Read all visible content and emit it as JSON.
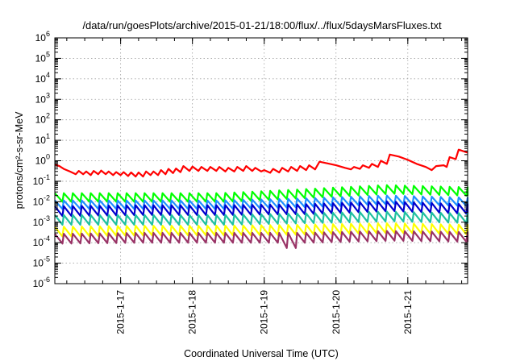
{
  "chart_data": {
    "type": "line",
    "title": "/data/run/goesPlots/archive/2015-01-21/18:00/flux/../flux/5daysMarsFluxes.txt",
    "xlabel": "Coordinated Universal Time (UTC)",
    "ylabel": "protons/cm²-s-sr-MeV",
    "yscale": "log",
    "xlim": [
      "2015-01-16T02:00",
      "2015-01-21T20:00"
    ],
    "ylim": [
      1e-06,
      1000000.0
    ],
    "grid": true,
    "x_ticks": [
      "2015-01-17T00:00",
      "2015-01-18T00:00",
      "2015-01-19T00:00",
      "2015-01-20T00:00",
      "2015-01-21T00:00"
    ],
    "x_tick_labels": [
      "2015-1-17",
      "2015-1-18",
      "2015-1-19",
      "2015-1-20",
      "2015-1-21"
    ],
    "y_tick_exponents": [
      -6,
      -5,
      -4,
      -3,
      -2,
      -1,
      0,
      1,
      2,
      3,
      4,
      5,
      6
    ],
    "series": [
      {
        "color": "#ff0000",
        "points": [
          [
            "2015-01-16T02:00",
            0.65
          ],
          [
            "2015-01-16T03:30",
            0.55
          ],
          [
            "2015-01-16T05:00",
            0.4
          ],
          [
            "2015-01-16T07:00",
            0.3
          ],
          [
            "2015-01-16T09:00",
            0.22
          ],
          [
            "2015-01-16T10:00",
            0.32
          ],
          [
            "2015-01-16T11:30",
            0.22
          ],
          [
            "2015-01-16T12:30",
            0.3
          ],
          [
            "2015-01-16T14:00",
            0.2
          ],
          [
            "2015-01-16T15:00",
            0.32
          ],
          [
            "2015-01-16T16:30",
            0.22
          ],
          [
            "2015-01-16T17:30",
            0.33
          ],
          [
            "2015-01-16T19:00",
            0.22
          ],
          [
            "2015-01-16T20:00",
            0.3
          ],
          [
            "2015-01-16T21:30",
            0.2
          ],
          [
            "2015-01-16T22:30",
            0.28
          ],
          [
            "2015-01-17T00:00",
            0.2
          ],
          [
            "2015-01-17T01:00",
            0.28
          ],
          [
            "2015-01-17T02:30",
            0.18
          ],
          [
            "2015-01-17T03:30",
            0.27
          ],
          [
            "2015-01-17T05:00",
            0.17
          ],
          [
            "2015-01-17T06:00",
            0.27
          ],
          [
            "2015-01-17T07:30",
            0.17
          ],
          [
            "2015-01-17T08:30",
            0.3
          ],
          [
            "2015-01-17T10:00",
            0.2
          ],
          [
            "2015-01-17T11:00",
            0.3
          ],
          [
            "2015-01-17T12:30",
            0.2
          ],
          [
            "2015-01-17T13:30",
            0.35
          ],
          [
            "2015-01-17T15:00",
            0.22
          ],
          [
            "2015-01-17T16:00",
            0.4
          ],
          [
            "2015-01-17T17:30",
            0.25
          ],
          [
            "2015-01-17T18:30",
            0.42
          ],
          [
            "2015-01-17T20:00",
            0.28
          ],
          [
            "2015-01-17T21:00",
            0.55
          ],
          [
            "2015-01-17T23:00",
            0.32
          ],
          [
            "2015-01-18T00:00",
            0.52
          ],
          [
            "2015-01-18T02:00",
            0.32
          ],
          [
            "2015-01-18T03:00",
            0.5
          ],
          [
            "2015-01-18T05:00",
            0.32
          ],
          [
            "2015-01-18T06:00",
            0.5
          ],
          [
            "2015-01-18T08:00",
            0.32
          ],
          [
            "2015-01-18T09:00",
            0.5
          ],
          [
            "2015-01-18T11:00",
            0.3
          ],
          [
            "2015-01-18T12:00",
            0.45
          ],
          [
            "2015-01-18T14:00",
            0.3
          ],
          [
            "2015-01-18T15:00",
            0.5
          ],
          [
            "2015-01-18T17:00",
            0.32
          ],
          [
            "2015-01-18T18:00",
            0.55
          ],
          [
            "2015-01-18T20:00",
            0.32
          ],
          [
            "2015-01-18T21:00",
            0.45
          ],
          [
            "2015-01-18T23:00",
            0.3
          ],
          [
            "2015-01-19T00:00",
            0.35
          ],
          [
            "2015-01-19T02:00",
            0.26
          ],
          [
            "2015-01-19T03:00",
            0.4
          ],
          [
            "2015-01-19T05:00",
            0.27
          ],
          [
            "2015-01-19T06:00",
            0.45
          ],
          [
            "2015-01-19T08:00",
            0.3
          ],
          [
            "2015-01-19T09:00",
            0.5
          ],
          [
            "2015-01-19T11:00",
            0.32
          ],
          [
            "2015-01-19T12:00",
            0.55
          ],
          [
            "2015-01-19T14:00",
            0.35
          ],
          [
            "2015-01-19T15:00",
            0.6
          ],
          [
            "2015-01-19T17:00",
            0.38
          ],
          [
            "2015-01-19T18:30",
            0.9
          ],
          [
            "2015-01-19T22:00",
            0.7
          ],
          [
            "2015-01-20T00:00",
            0.6
          ],
          [
            "2015-01-20T03:00",
            0.45
          ],
          [
            "2015-01-20T05:00",
            0.38
          ],
          [
            "2015-01-20T06:00",
            0.5
          ],
          [
            "2015-01-20T08:00",
            0.4
          ],
          [
            "2015-01-20T09:00",
            0.6
          ],
          [
            "2015-01-20T11:00",
            0.45
          ],
          [
            "2015-01-20T12:00",
            0.7
          ],
          [
            "2015-01-20T14:00",
            0.5
          ],
          [
            "2015-01-20T15:00",
            1.0
          ],
          [
            "2015-01-20T17:00",
            0.7
          ],
          [
            "2015-01-20T18:00",
            2.0
          ],
          [
            "2015-01-20T21:00",
            1.6
          ],
          [
            "2015-01-21T00:00",
            1.1
          ],
          [
            "2015-01-21T03:00",
            0.7
          ],
          [
            "2015-01-21T06:00",
            0.5
          ],
          [
            "2015-01-21T08:00",
            0.35
          ],
          [
            "2015-01-21T09:30",
            0.55
          ],
          [
            "2015-01-21T12:00",
            0.6
          ],
          [
            "2015-01-21T13:00",
            0.5
          ],
          [
            "2015-01-21T14:00",
            1.5
          ],
          [
            "2015-01-21T16:00",
            1.2
          ],
          [
            "2015-01-21T17:00",
            3.5
          ],
          [
            "2015-01-21T20:00",
            2.5
          ]
        ]
      },
      {
        "color": "#00ff00",
        "base": [
          0.018,
          0.018,
          0.018,
          0.028,
          0.045,
          0.035
        ],
        "saw": 0.45,
        "period_hours": 3
      },
      {
        "color": "#1e90ff",
        "base": [
          0.008,
          0.008,
          0.008,
          0.01,
          0.014,
          0.011
        ],
        "saw": 0.45,
        "period_hours": 3
      },
      {
        "color": "#0000cd",
        "base": [
          0.004,
          0.0045,
          0.0045,
          0.005,
          0.007,
          0.005
        ],
        "saw": 0.5,
        "period_hours": 3
      },
      {
        "color": "#20c0a0",
        "base": [
          0.0015,
          0.0015,
          0.0015,
          0.0018,
          0.0022,
          0.0018
        ],
        "saw": 0.5,
        "period_hours": 3
      },
      {
        "color": "#ffff00",
        "base": [
          0.0004,
          0.00045,
          0.00045,
          0.0005,
          0.0006,
          0.0005
        ],
        "saw": 0.5,
        "period_hours": 3
      },
      {
        "color": "#993366",
        "base": [
          0.00018,
          0.0002,
          0.0002,
          0.0002,
          0.00025,
          0.00022
        ],
        "saw": 0.5,
        "period_hours": 3,
        "dip": [
          "2015-01-19T09:00",
          5.5e-05
        ]
      }
    ]
  }
}
